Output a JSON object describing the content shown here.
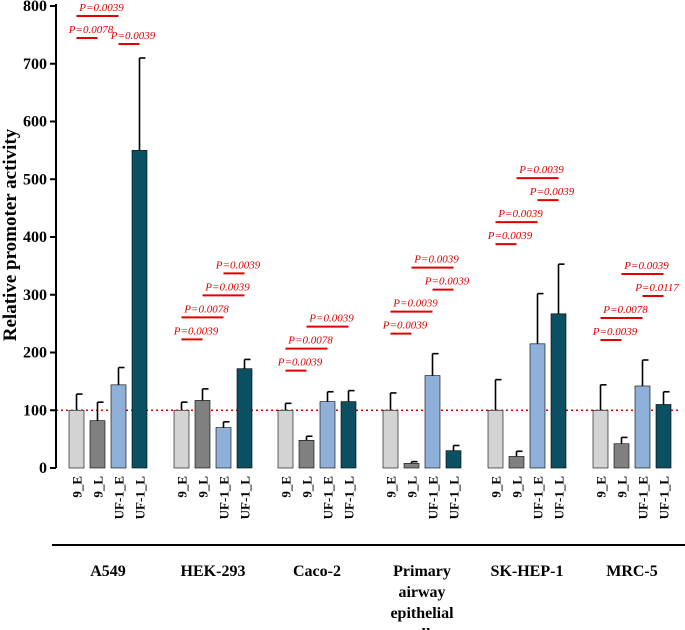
{
  "chart_data": {
    "type": "bar",
    "ylabel": "Relative promoter activity",
    "ylim": [
      0,
      800
    ],
    "yticks": [
      "0",
      "100",
      "200",
      "300",
      "400",
      "500",
      "600",
      "700",
      "800"
    ],
    "reference_line": 100,
    "bar_labels": [
      "9_E",
      "9_L",
      "UF-1_E",
      "UF-1_L"
    ],
    "colors": {
      "9_E": "#d3d3d3",
      "9_L": "#808080",
      "UF-1_E": "#8fb0d9",
      "UF-1_L": "#0b4f63",
      "significance": "#e00000"
    },
    "groups": [
      {
        "name": "A549",
        "label_lines": [
          "A549"
        ],
        "values": [
          100,
          82,
          144,
          550
        ],
        "errors": [
          28,
          32,
          30,
          160
        ],
        "comparisons": [
          {
            "from": 0,
            "to": 1,
            "text": "P=0.0078",
            "level": 0
          },
          {
            "from": 2,
            "to": 3,
            "text": "P=0.0039",
            "level": 1
          },
          {
            "from": 0,
            "to": 2,
            "text": "P=0.0039",
            "level": 2
          }
        ]
      },
      {
        "name": "HEK-293",
        "label_lines": [
          "HEK-293"
        ],
        "values": [
          100,
          117,
          70,
          172
        ],
        "errors": [
          14,
          20,
          10,
          16
        ],
        "comparisons": [
          {
            "from": 0,
            "to": 1,
            "text": "P=0.0039",
            "level": 0
          },
          {
            "from": 0,
            "to": 2,
            "text": "P=0.0078",
            "level": 1
          },
          {
            "from": 1,
            "to": 3,
            "text": "P=0.0039",
            "level": 2
          },
          {
            "from": 2,
            "to": 3,
            "text": "P=0.0039",
            "level": 3
          }
        ]
      },
      {
        "name": "Caco-2",
        "label_lines": [
          "Caco-2"
        ],
        "values": [
          100,
          48,
          115,
          115
        ],
        "errors": [
          12,
          7,
          17,
          19
        ],
        "comparisons": [
          {
            "from": 0,
            "to": 1,
            "text": "P=0.0039",
            "level": 0
          },
          {
            "from": 0,
            "to": 2,
            "text": "P=0.0078",
            "level": 1
          },
          {
            "from": 1,
            "to": 3,
            "text": "P=0.0039",
            "level": 2
          }
        ]
      },
      {
        "name": "Primary airway epithelial cells",
        "label_lines": [
          "Primary",
          "airway",
          "epithelial",
          "cells"
        ],
        "values": [
          100,
          8,
          160,
          30
        ],
        "errors": [
          30,
          3,
          38,
          9
        ],
        "comparisons": [
          {
            "from": 0,
            "to": 1,
            "text": "P=0.0039",
            "level": 0
          },
          {
            "from": 0,
            "to": 2,
            "text": "P=0.0039",
            "level": 1
          },
          {
            "from": 2,
            "to": 3,
            "text": "P=0.0039",
            "level": 2
          },
          {
            "from": 1,
            "to": 3,
            "text": "P=0.0039",
            "level": 3
          }
        ]
      },
      {
        "name": "SK-HEP-1",
        "label_lines": [
          "SK-HEP-1"
        ],
        "values": [
          100,
          20,
          215,
          267
        ],
        "errors": [
          53,
          9,
          87,
          86
        ],
        "comparisons": [
          {
            "from": 0,
            "to": 1,
            "text": "P=0.0039",
            "level": 0
          },
          {
            "from": 0,
            "to": 2,
            "text": "P=0.0039",
            "level": 1
          },
          {
            "from": 2,
            "to": 3,
            "text": "P=0.0039",
            "level": 2
          },
          {
            "from": 1,
            "to": 3,
            "text": "P=0.0039",
            "level": 3
          }
        ]
      },
      {
        "name": "MRC-5",
        "label_lines": [
          "MRC-5"
        ],
        "values": [
          100,
          42,
          142,
          110
        ],
        "errors": [
          44,
          11,
          45,
          22
        ],
        "comparisons": [
          {
            "from": 0,
            "to": 1,
            "text": "P=0.0039",
            "level": 0
          },
          {
            "from": 0,
            "to": 2,
            "text": "P=0.0078",
            "level": 1
          },
          {
            "from": 2,
            "to": 3,
            "text": "P=0.0117",
            "level": 2
          },
          {
            "from": 1,
            "to": 3,
            "text": "P=0.0039",
            "level": 3
          }
        ]
      }
    ]
  }
}
